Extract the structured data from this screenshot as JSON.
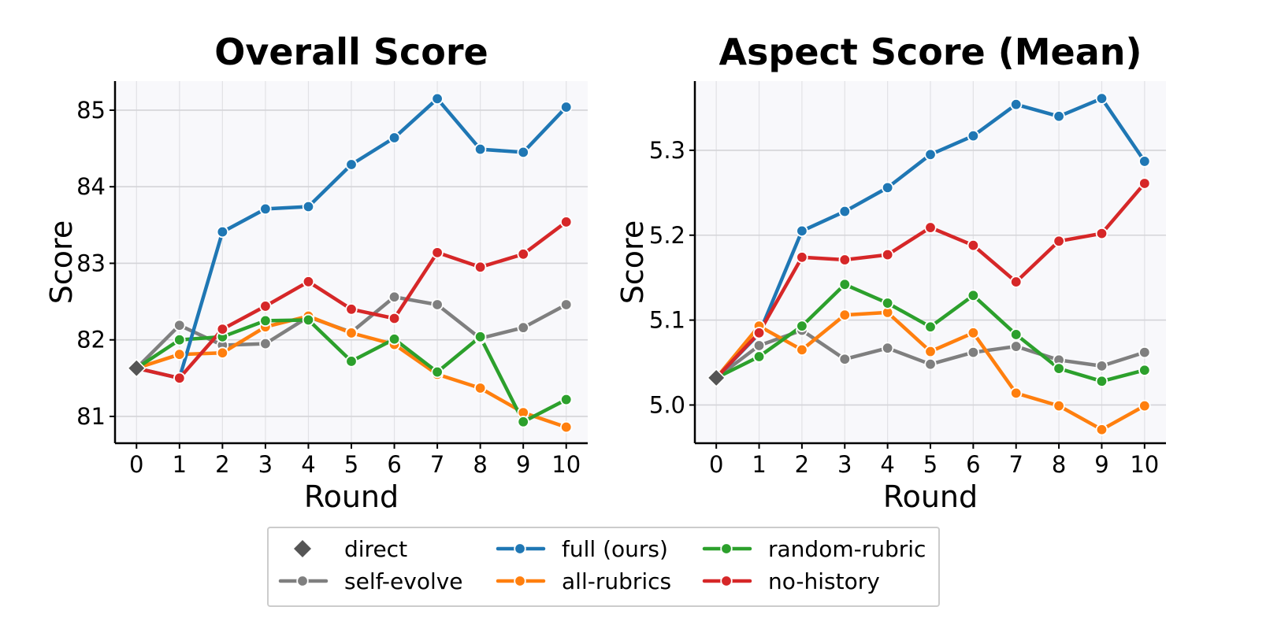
{
  "chart_data": [
    {
      "type": "line",
      "title": "Overall Score",
      "xlabel": "Round",
      "ylabel": "Score",
      "x": [
        0,
        1,
        2,
        3,
        4,
        5,
        6,
        7,
        8,
        9,
        10
      ],
      "xlim": [
        -0.5,
        10.5
      ],
      "ylim": [
        80.65,
        85.38
      ],
      "yticks": [
        81,
        82,
        83,
        84,
        85
      ],
      "grid": true,
      "series": [
        {
          "name": "direct",
          "color": "#555555",
          "marker": "diamond",
          "points": [
            [
              0,
              81.63
            ]
          ]
        },
        {
          "name": "self-evolve",
          "color": "#7f7f7f",
          "marker": "circle",
          "points": [
            [
              0,
              81.63
            ],
            [
              1,
              82.19
            ],
            [
              2,
              81.93
            ],
            [
              3,
              81.95
            ],
            [
              4,
              82.3
            ],
            [
              5,
              82.1
            ],
            [
              6,
              82.56
            ],
            [
              7,
              82.46
            ],
            [
              8,
              82.02
            ],
            [
              9,
              82.16
            ],
            [
              10,
              82.46
            ]
          ]
        },
        {
          "name": "full (ours)",
          "color": "#1f77b4",
          "marker": "circle",
          "points": [
            [
              0,
              81.63
            ],
            [
              1,
              81.5
            ],
            [
              2,
              83.41
            ],
            [
              3,
              83.71
            ],
            [
              4,
              83.74
            ],
            [
              5,
              84.29
            ],
            [
              6,
              84.64
            ],
            [
              7,
              85.15
            ],
            [
              8,
              84.49
            ],
            [
              9,
              84.45
            ],
            [
              10,
              85.04
            ]
          ]
        },
        {
          "name": "all-rubrics",
          "color": "#ff7f0e",
          "marker": "circle",
          "points": [
            [
              0,
              81.63
            ],
            [
              1,
              81.81
            ],
            [
              2,
              81.83
            ],
            [
              3,
              82.17
            ],
            [
              4,
              82.31
            ],
            [
              5,
              82.09
            ],
            [
              6,
              81.94
            ],
            [
              7,
              81.55
            ],
            [
              8,
              81.37
            ],
            [
              9,
              81.05
            ],
            [
              10,
              80.86
            ]
          ]
        },
        {
          "name": "random-rubric",
          "color": "#2ca02c",
          "marker": "circle",
          "points": [
            [
              0,
              81.63
            ],
            [
              1,
              82.0
            ],
            [
              2,
              82.04
            ],
            [
              3,
              82.25
            ],
            [
              4,
              82.26
            ],
            [
              5,
              81.72
            ],
            [
              6,
              82.01
            ],
            [
              7,
              81.58
            ],
            [
              8,
              82.04
            ],
            [
              9,
              80.93
            ],
            [
              10,
              81.22
            ]
          ]
        },
        {
          "name": "no-history",
          "color": "#d62728",
          "marker": "circle",
          "points": [
            [
              0,
              81.63
            ],
            [
              1,
              81.5
            ],
            [
              2,
              82.14
            ],
            [
              3,
              82.44
            ],
            [
              4,
              82.76
            ],
            [
              5,
              82.4
            ],
            [
              6,
              82.28
            ],
            [
              7,
              83.14
            ],
            [
              8,
              82.95
            ],
            [
              9,
              83.12
            ],
            [
              10,
              83.54
            ]
          ]
        }
      ]
    },
    {
      "type": "line",
      "title": "Aspect Score (Mean)",
      "xlabel": "Round",
      "ylabel": "Score",
      "x": [
        0,
        1,
        2,
        3,
        4,
        5,
        6,
        7,
        8,
        9,
        10
      ],
      "xlim": [
        -0.5,
        10.5
      ],
      "ylim": [
        4.955,
        5.3815
      ],
      "yticks": [
        5.0,
        5.1,
        5.2,
        5.3
      ],
      "ytick_labels": [
        "5.0",
        "5.1",
        "5.2",
        "5.3"
      ],
      "grid": true,
      "series": [
        {
          "name": "direct",
          "color": "#555555",
          "marker": "diamond",
          "points": [
            [
              0,
              5.032
            ]
          ]
        },
        {
          "name": "self-evolve",
          "color": "#7f7f7f",
          "marker": "circle",
          "points": [
            [
              0,
              5.032
            ],
            [
              1,
              5.07
            ],
            [
              2,
              5.088
            ],
            [
              3,
              5.054
            ],
            [
              4,
              5.067
            ],
            [
              5,
              5.048
            ],
            [
              6,
              5.062
            ],
            [
              7,
              5.069
            ],
            [
              8,
              5.053
            ],
            [
              9,
              5.046
            ],
            [
              10,
              5.062
            ]
          ]
        },
        {
          "name": "full (ours)",
          "color": "#1f77b4",
          "marker": "circle",
          "points": [
            [
              0,
              5.032
            ],
            [
              1,
              5.084
            ],
            [
              2,
              5.205
            ],
            [
              3,
              5.228
            ],
            [
              4,
              5.256
            ],
            [
              5,
              5.295
            ],
            [
              6,
              5.317
            ],
            [
              7,
              5.354
            ],
            [
              8,
              5.34
            ],
            [
              9,
              5.361
            ],
            [
              10,
              5.287
            ]
          ]
        },
        {
          "name": "all-rubrics",
          "color": "#ff7f0e",
          "marker": "circle",
          "points": [
            [
              0,
              5.032
            ],
            [
              1,
              5.093
            ],
            [
              2,
              5.065
            ],
            [
              3,
              5.106
            ],
            [
              4,
              5.109
            ],
            [
              5,
              5.063
            ],
            [
              6,
              5.085
            ],
            [
              7,
              5.014
            ],
            [
              8,
              4.999
            ],
            [
              9,
              4.971
            ],
            [
              10,
              4.999
            ]
          ]
        },
        {
          "name": "random-rubric",
          "color": "#2ca02c",
          "marker": "circle",
          "points": [
            [
              0,
              5.032
            ],
            [
              1,
              5.057
            ],
            [
              2,
              5.093
            ],
            [
              3,
              5.142
            ],
            [
              4,
              5.12
            ],
            [
              5,
              5.092
            ],
            [
              6,
              5.129
            ],
            [
              7,
              5.083
            ],
            [
              8,
              5.043
            ],
            [
              9,
              5.028
            ],
            [
              10,
              5.041
            ]
          ]
        },
        {
          "name": "no-history",
          "color": "#d62728",
          "marker": "circle",
          "points": [
            [
              0,
              5.032
            ],
            [
              1,
              5.085
            ],
            [
              2,
              5.174
            ],
            [
              3,
              5.171
            ],
            [
              4,
              5.177
            ],
            [
              5,
              5.209
            ],
            [
              6,
              5.188
            ],
            [
              7,
              5.145
            ],
            [
              8,
              5.193
            ],
            [
              9,
              5.202
            ],
            [
              10,
              5.261
            ]
          ]
        }
      ]
    }
  ],
  "legend": {
    "placement": "bottom-center",
    "columns": 3,
    "entries": [
      {
        "label": "direct",
        "color": "#555555",
        "marker": "diamond",
        "line": false
      },
      {
        "label": "self-evolve",
        "color": "#7f7f7f",
        "marker": "circle",
        "line": true
      },
      {
        "label": "full (ours)",
        "color": "#1f77b4",
        "marker": "circle",
        "line": true
      },
      {
        "label": "all-rubrics",
        "color": "#ff7f0e",
        "marker": "circle",
        "line": true
      },
      {
        "label": "random-rubric",
        "color": "#2ca02c",
        "marker": "circle",
        "line": true
      },
      {
        "label": "no-history",
        "color": "#d62728",
        "marker": "circle",
        "line": true
      }
    ]
  }
}
